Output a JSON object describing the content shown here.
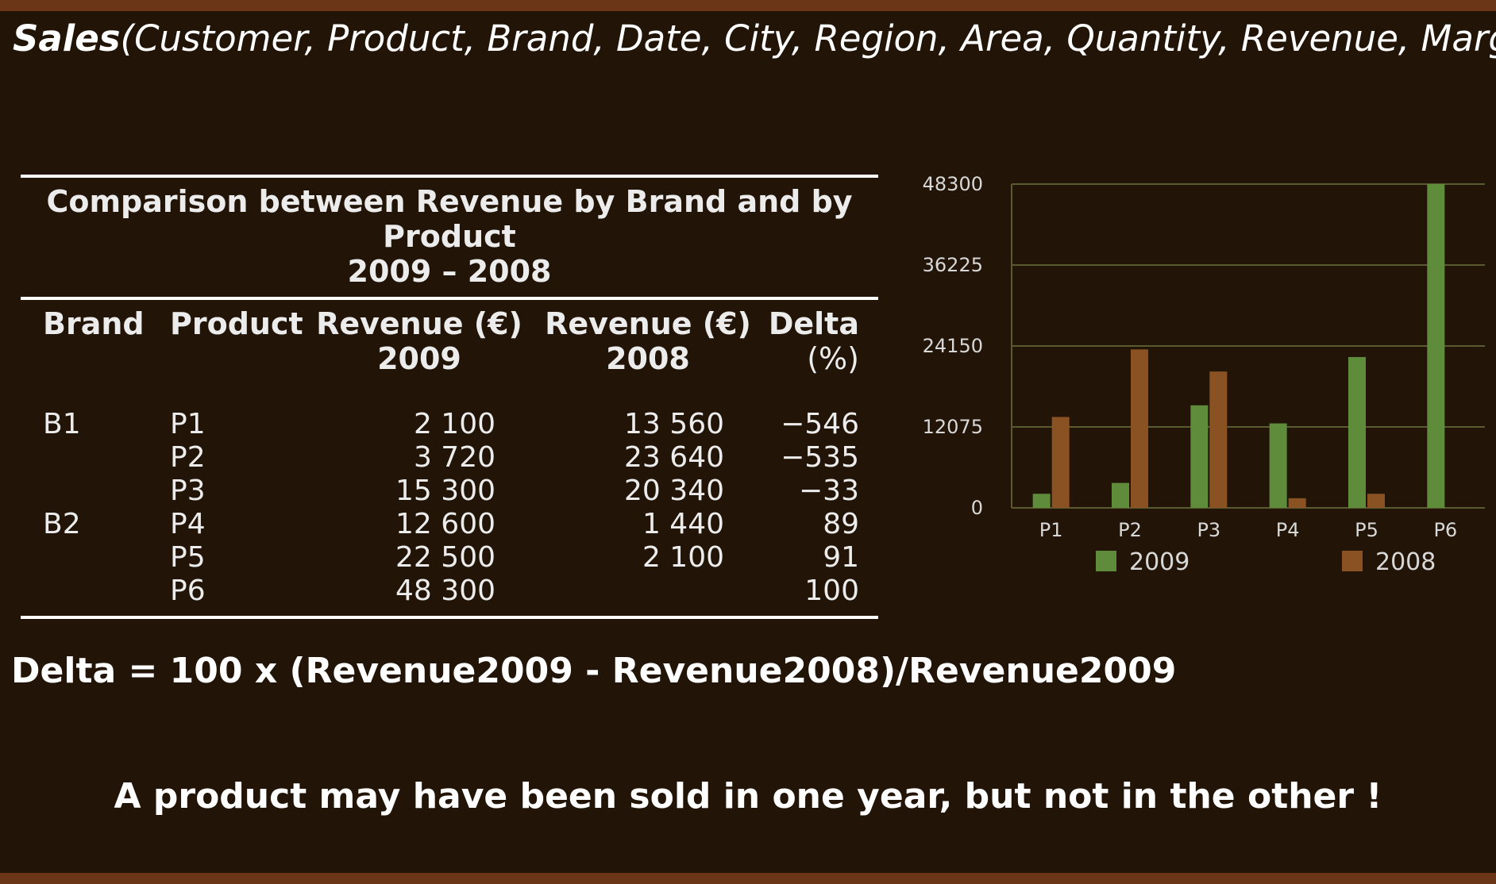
{
  "schema": {
    "relation": "Sales",
    "attributes": "(Customer, Product, Brand, Date, City, Region, Area, Quantity, Revenue, Margin)"
  },
  "table": {
    "caption_line1": "Comparison between Revenue by Brand and by Product",
    "caption_line2": "2009 – 2008",
    "headers": {
      "brand": "Brand",
      "product": "Product",
      "rev2009_l1": "Revenue (€)",
      "rev2009_l2": "2009",
      "rev2008_l1": "Revenue (€)",
      "rev2008_l2": "2008",
      "delta_l1": "Delta",
      "delta_l2": "(%)"
    },
    "rows": [
      {
        "brand": "B1",
        "product": "P1",
        "rev2009": "2 100",
        "rev2008": "13 560",
        "delta": "−546"
      },
      {
        "brand": "",
        "product": "P2",
        "rev2009": "3 720",
        "rev2008": "23 640",
        "delta": "−535"
      },
      {
        "brand": "",
        "product": "P3",
        "rev2009": "15 300",
        "rev2008": "20 340",
        "delta": "−33"
      },
      {
        "brand": "B2",
        "product": "P4",
        "rev2009": "12 600",
        "rev2008": "1 440",
        "delta": "89"
      },
      {
        "brand": "",
        "product": "P5",
        "rev2009": "22 500",
        "rev2008": "2 100",
        "delta": "91"
      },
      {
        "brand": "",
        "product": "P6",
        "rev2009": "48 300",
        "rev2008": "",
        "delta": "100"
      }
    ]
  },
  "chart_data": {
    "type": "bar",
    "title": "",
    "xlabel": "",
    "ylabel": "",
    "categories": [
      "P1",
      "P2",
      "P3",
      "P4",
      "P5",
      "P6"
    ],
    "series": [
      {
        "name": "2009",
        "color": "#5e8c3a",
        "values": [
          2100,
          3720,
          15300,
          12600,
          22500,
          48300
        ]
      },
      {
        "name": "2008",
        "color": "#8a5222",
        "values": [
          13560,
          23640,
          20340,
          1440,
          2100,
          0
        ]
      }
    ],
    "yticks": [
      0,
      12075,
      24150,
      36225,
      48300
    ],
    "ylim": [
      0,
      48300
    ],
    "grid": true,
    "legend_position": "bottom"
  },
  "formula": "Delta = 100 x (Revenue2009 - Revenue2008)/Revenue2009",
  "note": "A product may have been sold in one year, but not in the other !"
}
